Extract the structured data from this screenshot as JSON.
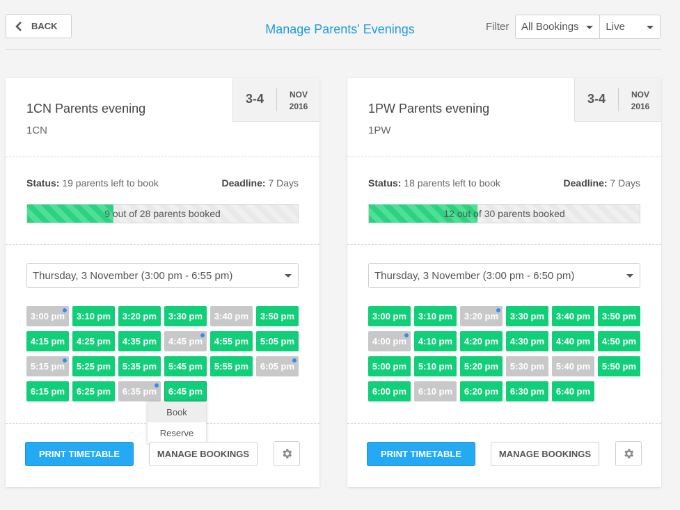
{
  "header": {
    "back_label": "BACK",
    "title": "Manage Parents' Evenings",
    "filter_label": "Filter",
    "filter_type": "All Bookings",
    "filter_state": "Live"
  },
  "colors": {
    "accent": "#1e9be0",
    "available": "#11ce78",
    "booked": "#c8c8c8",
    "primary_button": "#24aaf5",
    "indicator_dot": "#2f8ff0"
  },
  "cards": [
    {
      "title": "1CN Parents evening",
      "subtitle": "1CN",
      "date_range": "3-4",
      "date_month": "NOV",
      "date_year": "2016",
      "status_label": "Status:",
      "status_value": "19 parents left to book",
      "deadline_label": "Deadline:",
      "deadline_value": "7 Days",
      "progress_text": "9 out of 28 parents booked",
      "progress_fraction": 0.32,
      "day_select": "Thursday, 3 November (3:00 pm - 6:55 pm)",
      "slots": [
        {
          "time": "3:00 pm",
          "state": "booked",
          "dot": true
        },
        {
          "time": "3:10 pm",
          "state": "avail",
          "dot": false
        },
        {
          "time": "3:20 pm",
          "state": "avail",
          "dot": false
        },
        {
          "time": "3:30 pm",
          "state": "avail",
          "dot": false
        },
        {
          "time": "3:40 pm",
          "state": "booked",
          "dot": false
        },
        {
          "time": "3:50 pm",
          "state": "avail",
          "dot": false
        },
        {
          "time": "4:15 pm",
          "state": "avail",
          "dot": false
        },
        {
          "time": "4:25 pm",
          "state": "avail",
          "dot": false
        },
        {
          "time": "4:35 pm",
          "state": "avail",
          "dot": false
        },
        {
          "time": "4:45 pm",
          "state": "booked",
          "dot": true
        },
        {
          "time": "4:55 pm",
          "state": "avail",
          "dot": false
        },
        {
          "time": "5:05 pm",
          "state": "avail",
          "dot": false
        },
        {
          "time": "5:15 pm",
          "state": "booked",
          "dot": true
        },
        {
          "time": "5:25 pm",
          "state": "avail",
          "dot": false
        },
        {
          "time": "5:35 pm",
          "state": "avail",
          "dot": false
        },
        {
          "time": "5:45 pm",
          "state": "avail",
          "dot": false
        },
        {
          "time": "5:55 pm",
          "state": "avail",
          "dot": false
        },
        {
          "time": "6:05 pm",
          "state": "booked",
          "dot": true
        },
        {
          "time": "6:15 pm",
          "state": "avail",
          "dot": false
        },
        {
          "time": "6:25 pm",
          "state": "avail",
          "dot": false
        },
        {
          "time": "6:35 pm",
          "state": "booked",
          "dot": true
        },
        {
          "time": "6:45 pm",
          "state": "avail",
          "dot": false,
          "active": true
        }
      ],
      "popup": [
        "Book",
        "Reserve"
      ],
      "print_label": "PRINT TIMETABLE",
      "manage_label": "MANAGE BOOKINGS"
    },
    {
      "title": "1PW Parents evening",
      "subtitle": "1PW",
      "date_range": "3-4",
      "date_month": "NOV",
      "date_year": "2016",
      "status_label": "Status:",
      "status_value": "18 parents left to book",
      "deadline_label": "Deadline:",
      "deadline_value": "7 Days",
      "progress_text": "12 out of 30 parents booked",
      "progress_fraction": 0.4,
      "day_select": "Thursday, 3 November (3:00 pm - 6:50 pm)",
      "slots": [
        {
          "time": "3:00 pm",
          "state": "avail",
          "dot": false
        },
        {
          "time": "3:10 pm",
          "state": "avail",
          "dot": false
        },
        {
          "time": "3:20 pm",
          "state": "booked",
          "dot": true
        },
        {
          "time": "3:30 pm",
          "state": "avail",
          "dot": false
        },
        {
          "time": "3:40 pm",
          "state": "avail",
          "dot": false
        },
        {
          "time": "3:50 pm",
          "state": "avail",
          "dot": false
        },
        {
          "time": "4:00 pm",
          "state": "booked",
          "dot": true
        },
        {
          "time": "4:10 pm",
          "state": "avail",
          "dot": false
        },
        {
          "time": "4:20 pm",
          "state": "avail",
          "dot": false
        },
        {
          "time": "4:30 pm",
          "state": "avail",
          "dot": false
        },
        {
          "time": "4:40 pm",
          "state": "avail",
          "dot": false
        },
        {
          "time": "4:50 pm",
          "state": "avail",
          "dot": false
        },
        {
          "time": "5:00 pm",
          "state": "avail",
          "dot": false
        },
        {
          "time": "5:10 pm",
          "state": "avail",
          "dot": false
        },
        {
          "time": "5:20 pm",
          "state": "avail",
          "dot": false
        },
        {
          "time": "5:30 pm",
          "state": "booked",
          "dot": false
        },
        {
          "time": "5:40 pm",
          "state": "booked",
          "dot": false
        },
        {
          "time": "5:50 pm",
          "state": "avail",
          "dot": false
        },
        {
          "time": "6:00 pm",
          "state": "avail",
          "dot": false
        },
        {
          "time": "6:10 pm",
          "state": "booked",
          "dot": false
        },
        {
          "time": "6:20 pm",
          "state": "avail",
          "dot": false
        },
        {
          "time": "6:30 pm",
          "state": "avail",
          "dot": false
        },
        {
          "time": "6:40 pm",
          "state": "avail",
          "dot": false
        }
      ],
      "print_label": "PRINT TIMETABLE",
      "manage_label": "MANAGE BOOKINGS"
    }
  ]
}
